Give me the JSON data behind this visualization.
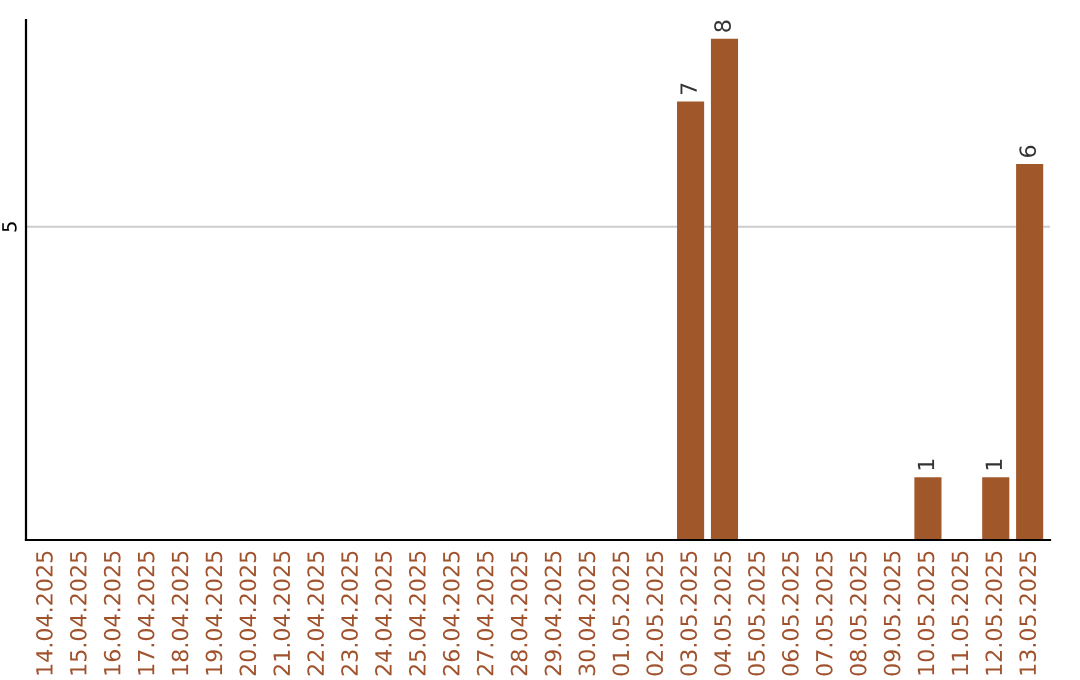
{
  "chart_data": {
    "type": "bar",
    "ylim": [
      0,
      8.3
    ],
    "categories": [
      "14.04.2025",
      "15.04.2025",
      "16.04.2025",
      "17.04.2025",
      "18.04.2025",
      "19.04.2025",
      "20.04.2025",
      "21.04.2025",
      "22.04.2025",
      "23.04.2025",
      "24.04.2025",
      "25.04.2025",
      "26.04.2025",
      "27.04.2025",
      "28.04.2025",
      "29.04.2025",
      "30.04.2025",
      "01.05.2025",
      "02.05.2025",
      "03.05.2025",
      "04.05.2025",
      "05.05.2025",
      "06.05.2025",
      "07.05.2025",
      "08.05.2025",
      "09.05.2025",
      "10.05.2025",
      "11.05.2025",
      "12.05.2025",
      "13.05.2025"
    ],
    "values": [
      null,
      null,
      null,
      null,
      null,
      null,
      null,
      null,
      null,
      null,
      null,
      null,
      null,
      null,
      null,
      null,
      null,
      null,
      null,
      7,
      8,
      null,
      null,
      null,
      null,
      null,
      1,
      null,
      1,
      6
    ],
    "value_labels": [
      null,
      null,
      null,
      null,
      null,
      null,
      null,
      null,
      null,
      null,
      null,
      null,
      null,
      null,
      null,
      null,
      null,
      null,
      null,
      "7",
      "8",
      null,
      null,
      null,
      null,
      null,
      "1",
      null,
      "1",
      "6"
    ],
    "color": "#a0582a",
    "ref_lines": [
      {
        "axis": "y",
        "value": 5,
        "label": "5",
        "color": "#cccccc"
      }
    ]
  }
}
